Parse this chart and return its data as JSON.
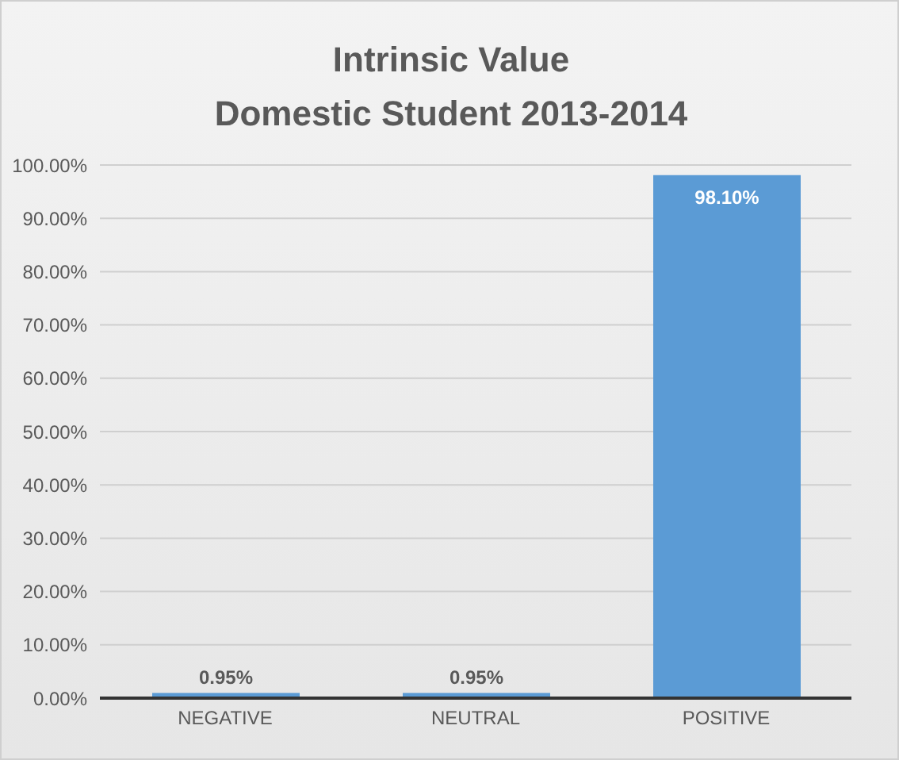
{
  "chart_data": {
    "type": "bar",
    "title": "Intrinsic Value\nDomestic Student 2013-2014",
    "categories": [
      "NEGATIVE",
      "NEUTRAL",
      "POSITIVE"
    ],
    "values": [
      0.95,
      0.95,
      98.1
    ],
    "color": "#5b9bd5",
    "value_labels": [
      "0.95%",
      "0.95%",
      "98.10%"
    ],
    "ylim": [
      0,
      100
    ],
    "yticks": [
      {
        "value": 0,
        "label": "0.00%"
      },
      {
        "value": 10,
        "label": "10.00%"
      },
      {
        "value": 20,
        "label": "20.00%"
      },
      {
        "value": 30,
        "label": "30.00%"
      },
      {
        "value": 40,
        "label": "40.00%"
      },
      {
        "value": 50,
        "label": "50.00%"
      },
      {
        "value": 60,
        "label": "60.00%"
      },
      {
        "value": 70,
        "label": "70.00%"
      },
      {
        "value": 80,
        "label": "80.00%"
      },
      {
        "value": 90,
        "label": "90.00%"
      },
      {
        "value": 100,
        "label": "100.00%"
      }
    ],
    "grid": "y",
    "legend": false
  }
}
